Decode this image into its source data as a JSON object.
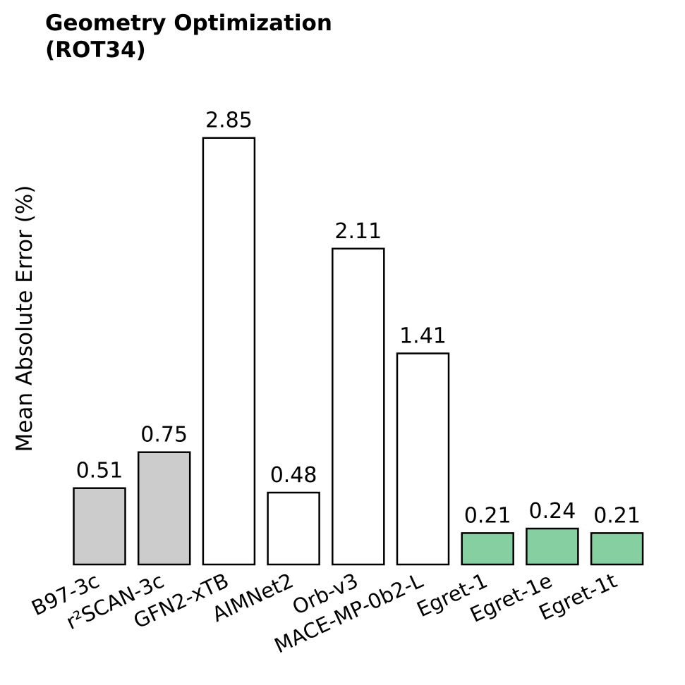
{
  "chart_data": {
    "type": "bar",
    "title": "Geometry Optimization\n(ROT34)",
    "xlabel": "",
    "ylabel": "Mean Absolute Error (%)",
    "ylim": [
      0,
      3.0
    ],
    "grid": false,
    "categories": [
      "B97-3c",
      "r²SCAN-3c",
      "GFN2-xTB",
      "AIMNet2",
      "Orb-v3",
      "MACE-MP-0b2-L",
      "Egret-1",
      "Egret-1e",
      "Egret-1t"
    ],
    "values": [
      0.51,
      0.75,
      2.85,
      0.48,
      2.11,
      1.41,
      0.21,
      0.24,
      0.21
    ],
    "value_labels": [
      "0.51",
      "0.75",
      "2.85",
      "0.48",
      "2.11",
      "1.41",
      "0.21",
      "0.24",
      "0.21"
    ],
    "bar_colors": [
      "#cccccc",
      "#cccccc",
      "#ffffff",
      "#ffffff",
      "#ffffff",
      "#ffffff",
      "#86cfa0",
      "#86cfa0",
      "#86cfa0"
    ],
    "edge_color": "#000000"
  }
}
